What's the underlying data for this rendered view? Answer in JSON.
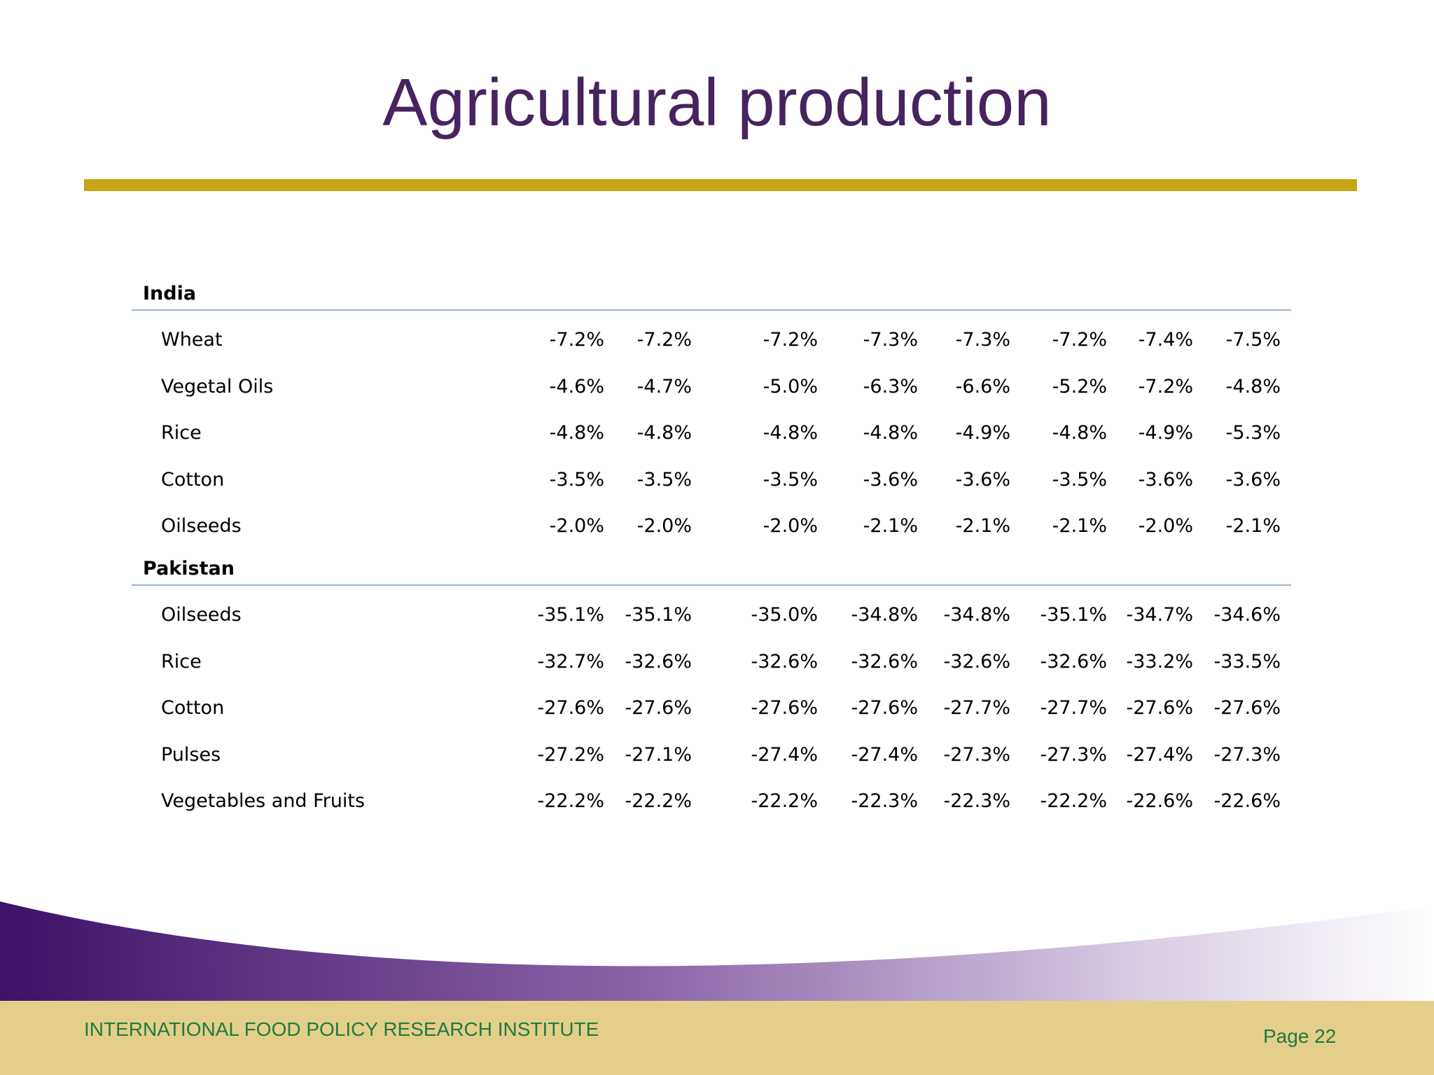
{
  "title": "Agricultural production",
  "colors": {
    "title": "#47235f",
    "gold_bar": "#c4a514",
    "rule": "#9ab4cf",
    "footer_bg": "#e3cf8a",
    "footer_text": "#1f7a3e",
    "wave_dark": "#3e1268"
  },
  "groups": [
    {
      "name": "India",
      "rows": [
        {
          "label": "Wheat",
          "values": [
            "-7.2%",
            "-7.2%",
            "-7.2%",
            "-7.3%",
            "-7.3%",
            "-7.2%",
            "-7.4%",
            "-7.5%"
          ]
        },
        {
          "label": "Vegetal Oils",
          "values": [
            "-4.6%",
            "-4.7%",
            "-5.0%",
            "-6.3%",
            "-6.6%",
            "-5.2%",
            "-7.2%",
            "-4.8%"
          ]
        },
        {
          "label": "Rice",
          "values": [
            "-4.8%",
            "-4.8%",
            "-4.8%",
            "-4.8%",
            "-4.9%",
            "-4.8%",
            "-4.9%",
            "-5.3%"
          ]
        },
        {
          "label": "Cotton",
          "values": [
            "-3.5%",
            "-3.5%",
            "-3.5%",
            "-3.6%",
            "-3.6%",
            "-3.5%",
            "-3.6%",
            "-3.6%"
          ]
        },
        {
          "label": "Oilseeds",
          "values": [
            "-2.0%",
            "-2.0%",
            "-2.0%",
            "-2.1%",
            "-2.1%",
            "-2.1%",
            "-2.0%",
            "-2.1%"
          ]
        }
      ]
    },
    {
      "name": "Pakistan",
      "rows": [
        {
          "label": "Oilseeds",
          "values": [
            "-35.1%",
            "-35.1%",
            "-35.0%",
            "-34.8%",
            "-34.8%",
            "-35.1%",
            "-34.7%",
            "-34.6%"
          ]
        },
        {
          "label": "Rice",
          "values": [
            "-32.7%",
            "-32.6%",
            "-32.6%",
            "-32.6%",
            "-32.6%",
            "-32.6%",
            "-33.2%",
            "-33.5%"
          ]
        },
        {
          "label": "Cotton",
          "values": [
            "-27.6%",
            "-27.6%",
            "-27.6%",
            "-27.6%",
            "-27.7%",
            "-27.7%",
            "-27.6%",
            "-27.6%"
          ]
        },
        {
          "label": "Pulses",
          "values": [
            "-27.2%",
            "-27.1%",
            "-27.4%",
            "-27.4%",
            "-27.3%",
            "-27.3%",
            "-27.4%",
            "-27.3%"
          ]
        },
        {
          "label": "Vegetables and Fruits",
          "values": [
            "-22.2%",
            "-22.2%",
            "-22.2%",
            "-22.3%",
            "-22.3%",
            "-22.2%",
            "-22.6%",
            "-22.6%"
          ]
        }
      ]
    }
  ],
  "footer": {
    "organization": "INTERNATIONAL FOOD POLICY RESEARCH INSTITUTE",
    "page": "Page 22"
  }
}
